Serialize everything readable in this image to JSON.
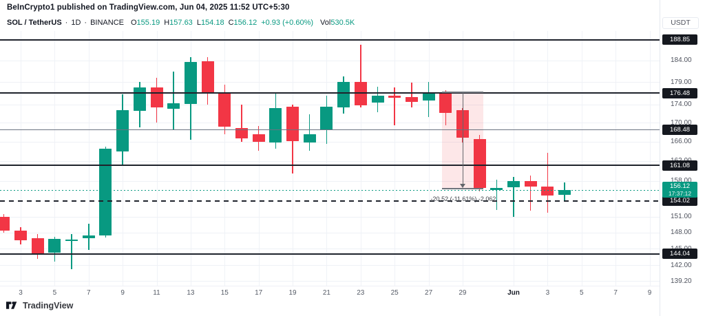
{
  "header": {
    "attribution": "BeInCrypto1 published on TradingView.com, Jun 04, 2025 11:52 UTC+5:30"
  },
  "legend": {
    "symbol": "SOL / TetherUS",
    "separator": "·",
    "interval": "1D",
    "exchange": "BINANCE",
    "ohlc": [
      {
        "label": "O",
        "value": "155.19"
      },
      {
        "label": "H",
        "value": "157.63"
      },
      {
        "label": "L",
        "value": "154.18"
      },
      {
        "label": "C",
        "value": "156.12"
      }
    ],
    "change": "+0.93 (+0.60%)",
    "volume_label": "Vol",
    "volume_value": "530.5K"
  },
  "axis": {
    "currency": "USDT",
    "price_gridlines": [
      184.0,
      179.0,
      174.0,
      170.0,
      166.0,
      162.0,
      158.0,
      151.0,
      148.0,
      145.0,
      142.0,
      139.2
    ],
    "time_ticks": [
      {
        "label": "3",
        "k": 0
      },
      {
        "label": "5",
        "k": 2
      },
      {
        "label": "7",
        "k": 4
      },
      {
        "label": "9",
        "k": 6
      },
      {
        "label": "11",
        "k": 8
      },
      {
        "label": "13",
        "k": 10
      },
      {
        "label": "15",
        "k": 12
      },
      {
        "label": "17",
        "k": 14
      },
      {
        "label": "19",
        "k": 16
      },
      {
        "label": "21",
        "k": 18
      },
      {
        "label": "23",
        "k": 20
      },
      {
        "label": "25",
        "k": 22
      },
      {
        "label": "27",
        "k": 24
      },
      {
        "label": "29",
        "k": 26
      },
      {
        "label": "Jun",
        "k": 29,
        "bold": true
      },
      {
        "label": "3",
        "k": 31
      },
      {
        "label": "5",
        "k": 33
      },
      {
        "label": "7",
        "k": 35
      },
      {
        "label": "9",
        "k": 37
      }
    ]
  },
  "levels": [
    {
      "price": 188.85,
      "label": "188.85",
      "style": "solid-bold"
    },
    {
      "price": 176.48,
      "label": "176.48",
      "style": "solid-bold"
    },
    {
      "price": 168.48,
      "label": "168.48",
      "style": "solid-thin"
    },
    {
      "price": 161.08,
      "label": "161.08",
      "style": "solid-bold"
    },
    {
      "price": 154.02,
      "label": "154.02",
      "style": "dashed"
    },
    {
      "price": 144.04,
      "label": "144.04",
      "style": "solid-bold"
    }
  ],
  "current_price": {
    "price": 156.12,
    "label": "156.12",
    "countdown": "17:37:12"
  },
  "measure": {
    "label": "-20.52 (-11.61%) -2,062",
    "from_price": 176.7,
    "to_price": 156.5,
    "k_start": 24.8,
    "k_end": 27.2
  },
  "chart_data": {
    "type": "candlestick",
    "title": "SOL / TetherUS · 1D · BINANCE",
    "y_axis": {
      "scale": "log",
      "unit": "USDT",
      "visible_range": [
        139.2,
        190.5
      ]
    },
    "x_axis": {
      "unit": "1 day",
      "start": "May 2",
      "end": "Jun 4"
    },
    "candles": [
      {
        "date": "May 2",
        "o": 150.9,
        "h": 151.5,
        "l": 147.9,
        "c": 148.3
      },
      {
        "date": "May 3",
        "o": 148.3,
        "h": 149.0,
        "l": 145.8,
        "c": 146.6
      },
      {
        "date": "May 4",
        "o": 146.9,
        "h": 147.7,
        "l": 143.2,
        "c": 144.1
      },
      {
        "date": "May 5",
        "o": 144.3,
        "h": 147.2,
        "l": 142.6,
        "c": 146.8
      },
      {
        "date": "May 6",
        "o": 146.4,
        "h": 147.7,
        "l": 141.3,
        "c": 146.7
      },
      {
        "date": "May 7",
        "o": 146.9,
        "h": 149.7,
        "l": 144.8,
        "c": 147.5
      },
      {
        "date": "May 8",
        "o": 147.4,
        "h": 165.0,
        "l": 147.0,
        "c": 164.5
      },
      {
        "date": "May 9",
        "o": 163.9,
        "h": 176.2,
        "l": 161.1,
        "c": 172.7
      },
      {
        "date": "May 10",
        "o": 172.6,
        "h": 179.0,
        "l": 169.0,
        "c": 177.8
      },
      {
        "date": "May 11",
        "o": 177.8,
        "h": 180.0,
        "l": 170.0,
        "c": 173.3
      },
      {
        "date": "May 12",
        "o": 173.0,
        "h": 181.3,
        "l": 168.6,
        "c": 174.3
      },
      {
        "date": "May 13",
        "o": 174.1,
        "h": 184.8,
        "l": 166.4,
        "c": 183.6
      },
      {
        "date": "May 14",
        "o": 183.7,
        "h": 184.7,
        "l": 174.0,
        "c": 176.5
      },
      {
        "date": "May 15",
        "o": 176.5,
        "h": 178.4,
        "l": 167.6,
        "c": 169.2
      },
      {
        "date": "May 16",
        "o": 168.9,
        "h": 173.9,
        "l": 166.0,
        "c": 166.7
      },
      {
        "date": "May 17",
        "o": 167.5,
        "h": 169.4,
        "l": 164.1,
        "c": 165.9
      },
      {
        "date": "May 18",
        "o": 165.9,
        "h": 176.7,
        "l": 164.6,
        "c": 173.2
      },
      {
        "date": "May 19",
        "o": 173.5,
        "h": 174.0,
        "l": 159.4,
        "c": 166.1
      },
      {
        "date": "May 20",
        "o": 165.8,
        "h": 171.9,
        "l": 164.1,
        "c": 167.6
      },
      {
        "date": "May 21",
        "o": 168.4,
        "h": 176.0,
        "l": 165.6,
        "c": 173.5
      },
      {
        "date": "May 22",
        "o": 173.3,
        "h": 180.3,
        "l": 172.0,
        "c": 179.0
      },
      {
        "date": "May 23",
        "o": 179.1,
        "h": 187.6,
        "l": 173.3,
        "c": 173.8
      },
      {
        "date": "May 24",
        "o": 174.4,
        "h": 177.9,
        "l": 172.3,
        "c": 175.9
      },
      {
        "date": "May 25",
        "o": 176.0,
        "h": 177.8,
        "l": 169.5,
        "c": 175.5
      },
      {
        "date": "May 26",
        "o": 175.6,
        "h": 178.9,
        "l": 173.4,
        "c": 174.6
      },
      {
        "date": "May 27",
        "o": 174.9,
        "h": 179.1,
        "l": 171.2,
        "c": 176.4
      },
      {
        "date": "May 28",
        "o": 176.5,
        "h": 177.2,
        "l": 169.5,
        "c": 172.2
      },
      {
        "date": "May 29",
        "o": 172.7,
        "h": 173.2,
        "l": 165.8,
        "c": 166.8
      },
      {
        "date": "May 30",
        "o": 166.6,
        "h": 167.4,
        "l": 155.9,
        "c": 156.5
      },
      {
        "date": "May 31",
        "o": 156.2,
        "h": 158.2,
        "l": 152.3,
        "c": 156.6
      },
      {
        "date": "Jun 1",
        "o": 156.7,
        "h": 158.8,
        "l": 151.0,
        "c": 157.9
      },
      {
        "date": "Jun 2",
        "o": 158.0,
        "h": 159.1,
        "l": 152.2,
        "c": 156.8
      },
      {
        "date": "Jun 3",
        "o": 156.9,
        "h": 163.7,
        "l": 151.7,
        "c": 155.1
      },
      {
        "date": "Jun 4",
        "o": 155.19,
        "h": 157.63,
        "l": 154.18,
        "c": 156.12
      }
    ]
  },
  "footer": {
    "logo_text": "TradingView"
  },
  "colors": {
    "up": "#089981",
    "down": "#f23645",
    "level_line": "#1e222b",
    "grid": "#eef1f6",
    "axis_text": "#4f535e",
    "badge_bg": "#15181f",
    "badge_text": "#ffffff",
    "accent": "#089981",
    "measure_fill": "rgba(242,54,69,0.12)"
  }
}
